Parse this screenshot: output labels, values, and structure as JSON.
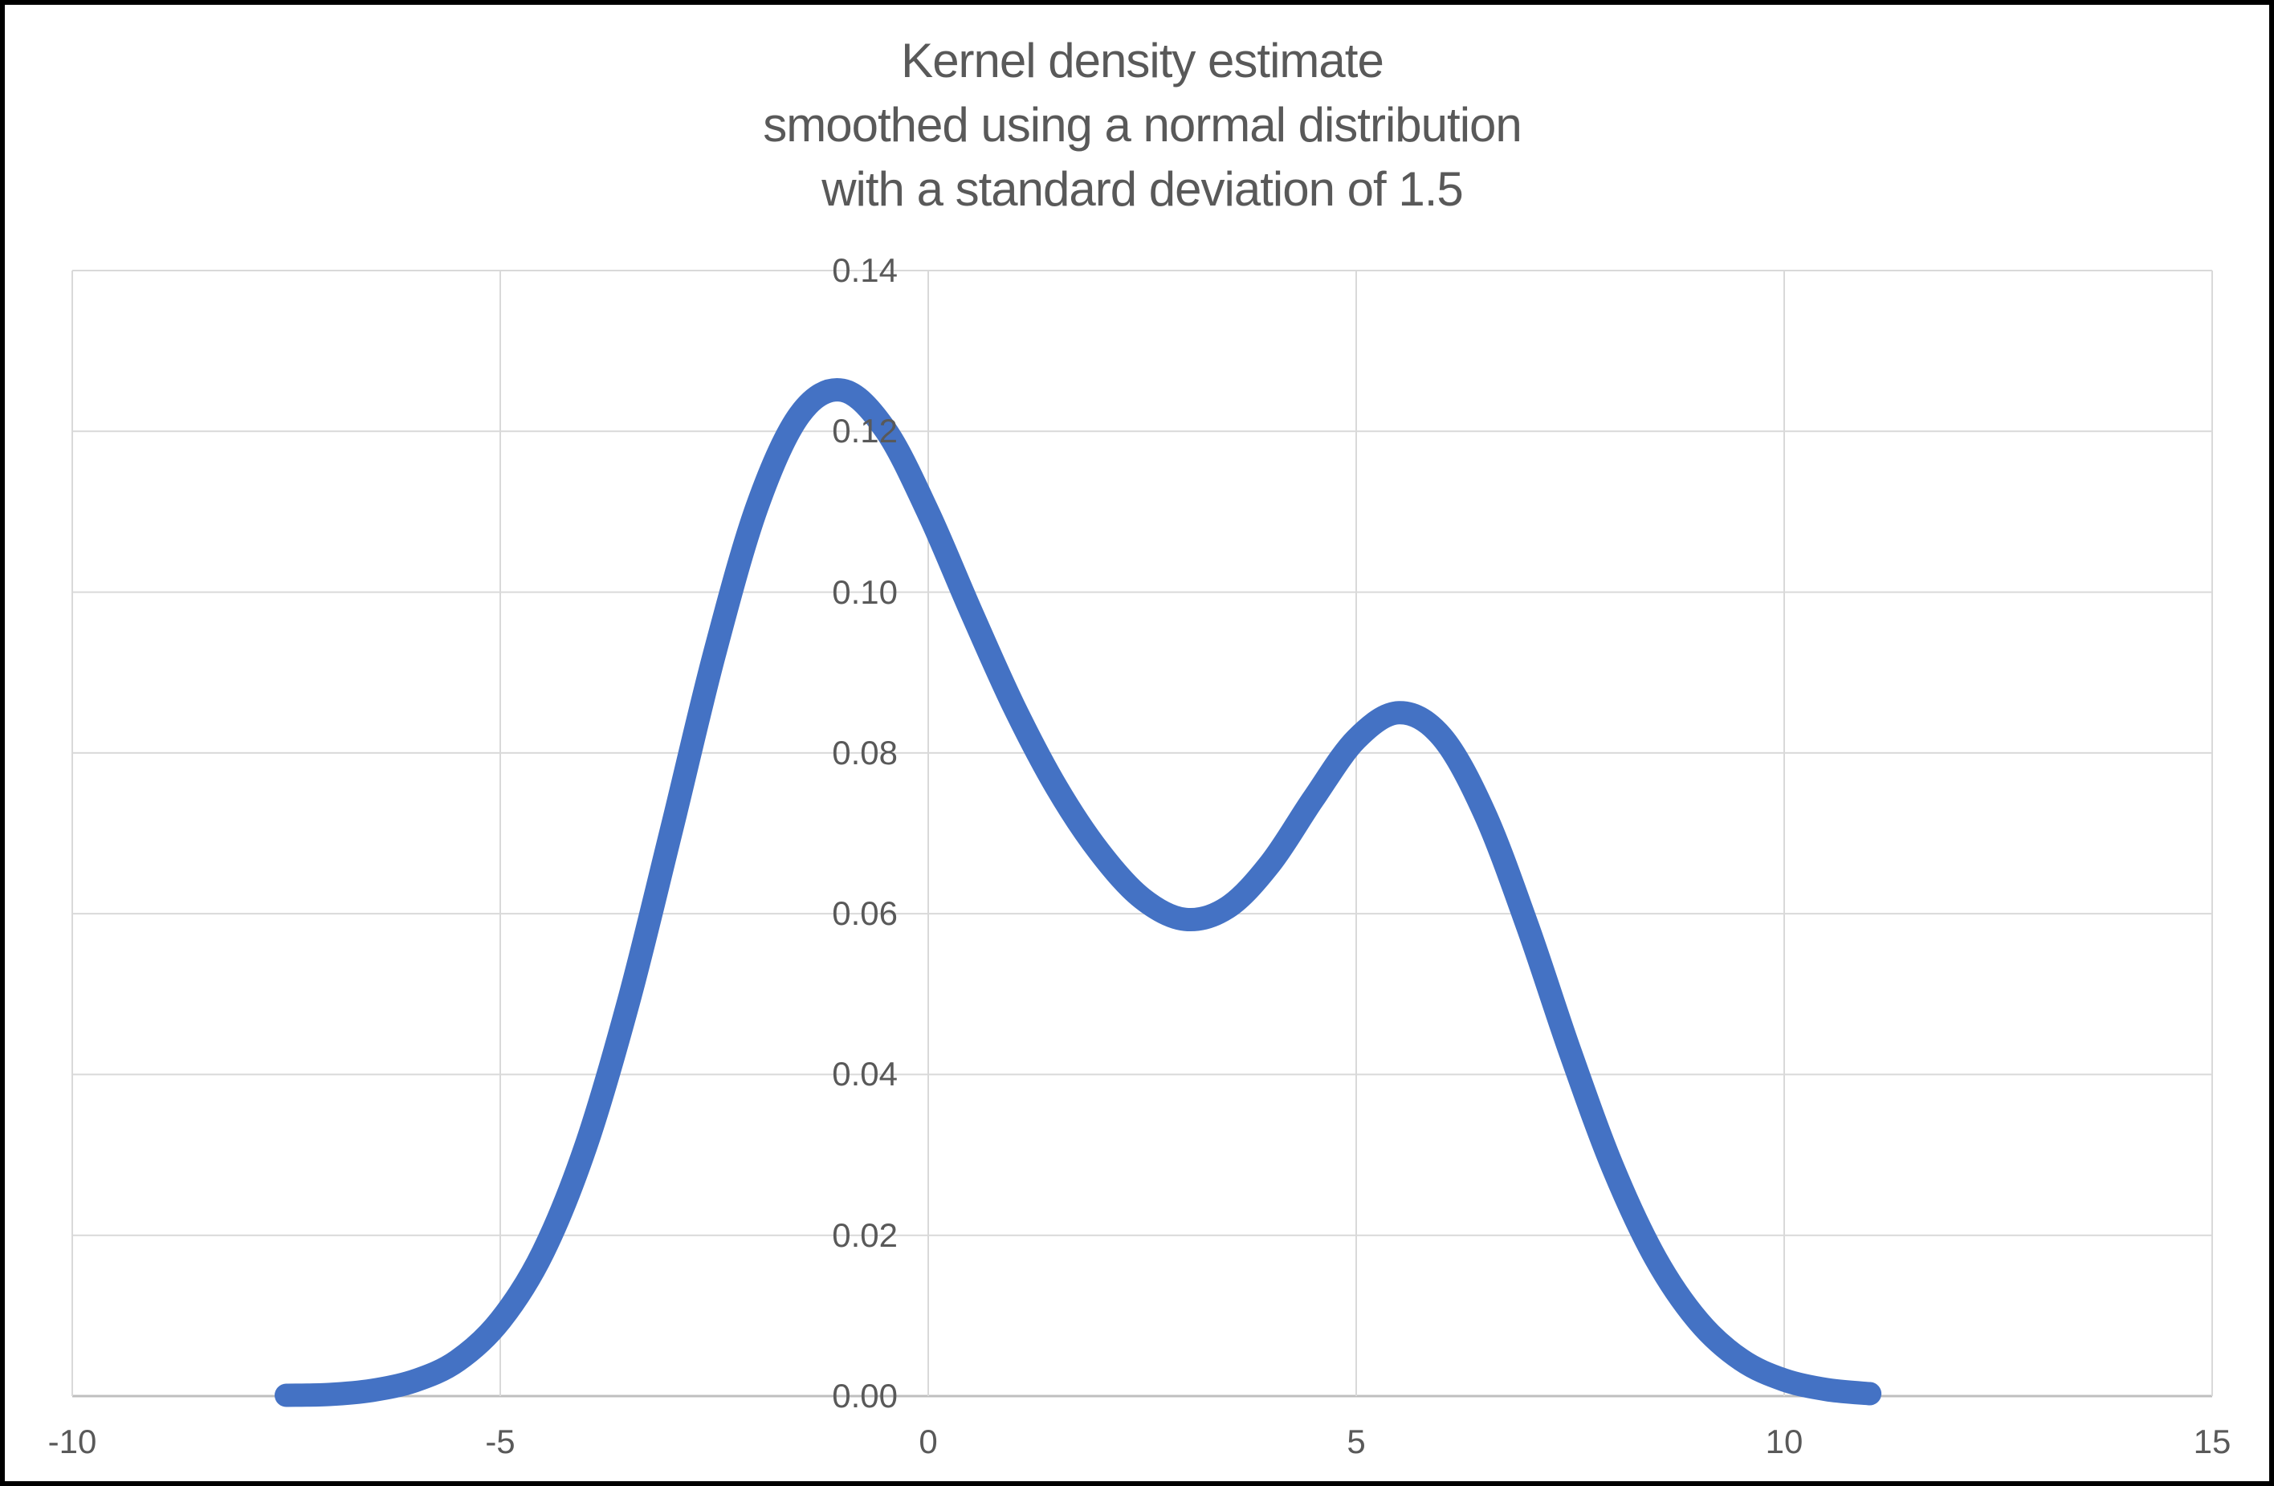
{
  "chart_data": {
    "type": "line",
    "title": "Kernel density estimate smoothed using a normal distribution with a standard deviation of 1.5",
    "title_lines": [
      "Kernel density estimate",
      "smoothed using a normal distribution",
      "with a standard deviation of 1.5"
    ],
    "xlabel": "",
    "ylabel": "",
    "grid": "on",
    "legend": "none",
    "x_axis": {
      "min": -10,
      "max": 15,
      "ticks": [
        -10,
        -5,
        0,
        5,
        10,
        15
      ],
      "tick_labels": [
        "-10",
        "-5",
        "0",
        "5",
        "10",
        "15"
      ]
    },
    "y_axis": {
      "min": 0,
      "max": 0.14,
      "ticks": [
        0,
        0.02,
        0.04,
        0.06,
        0.08,
        0.1,
        0.12,
        0.14
      ],
      "tick_labels": [
        "0.00",
        "0.02",
        "0.04",
        "0.06",
        "0.08",
        "0.10",
        "0.12",
        "0.14"
      ]
    },
    "series": [
      {
        "name": "Kernel density estimate",
        "color": "#4472C4",
        "points": [
          [
            -7.5,
            0.0001
          ],
          [
            -7.0,
            0.0002
          ],
          [
            -6.5,
            0.0007
          ],
          [
            -6.0,
            0.0019
          ],
          [
            -5.5,
            0.0044
          ],
          [
            -5.0,
            0.0094
          ],
          [
            -4.5,
            0.0179
          ],
          [
            -4.0,
            0.0311
          ],
          [
            -3.5,
            0.0491
          ],
          [
            -3.0,
            0.0704
          ],
          [
            -2.5,
            0.0922
          ],
          [
            -2.0,
            0.1106
          ],
          [
            -1.5,
            0.1221
          ],
          [
            -1.0,
            0.1251
          ],
          [
            -0.5,
            0.1202
          ],
          [
            0.0,
            0.1099
          ],
          [
            0.5,
            0.0976
          ],
          [
            1.0,
            0.0858
          ],
          [
            1.5,
            0.0757
          ],
          [
            2.0,
            0.0677
          ],
          [
            2.5,
            0.0619
          ],
          [
            3.0,
            0.0593
          ],
          [
            3.5,
            0.0608
          ],
          [
            4.0,
            0.0663
          ],
          [
            4.5,
            0.0743
          ],
          [
            5.0,
            0.0817
          ],
          [
            5.5,
            0.085
          ],
          [
            6.0,
            0.082
          ],
          [
            6.5,
            0.0725
          ],
          [
            7.0,
            0.0585
          ],
          [
            7.5,
            0.0428
          ],
          [
            8.0,
            0.0284
          ],
          [
            8.5,
            0.0171
          ],
          [
            9.0,
            0.0093
          ],
          [
            9.5,
            0.0045
          ],
          [
            10.0,
            0.002
          ],
          [
            10.5,
            0.0008
          ],
          [
            11.0,
            0.0003
          ]
        ]
      }
    ],
    "annotations": {
      "left_peak": {
        "x": -1.0,
        "y": 0.125
      },
      "valley": {
        "x": 3.0,
        "y": 0.059
      },
      "right_peak": {
        "x": 5.5,
        "y": 0.085
      }
    },
    "colors": {
      "curve": "#4472C4",
      "gridline": "#d9d9d9",
      "axis_line": "#bfbfbf",
      "text": "#595959",
      "background": "#ffffff",
      "frame": "#000000"
    }
  }
}
